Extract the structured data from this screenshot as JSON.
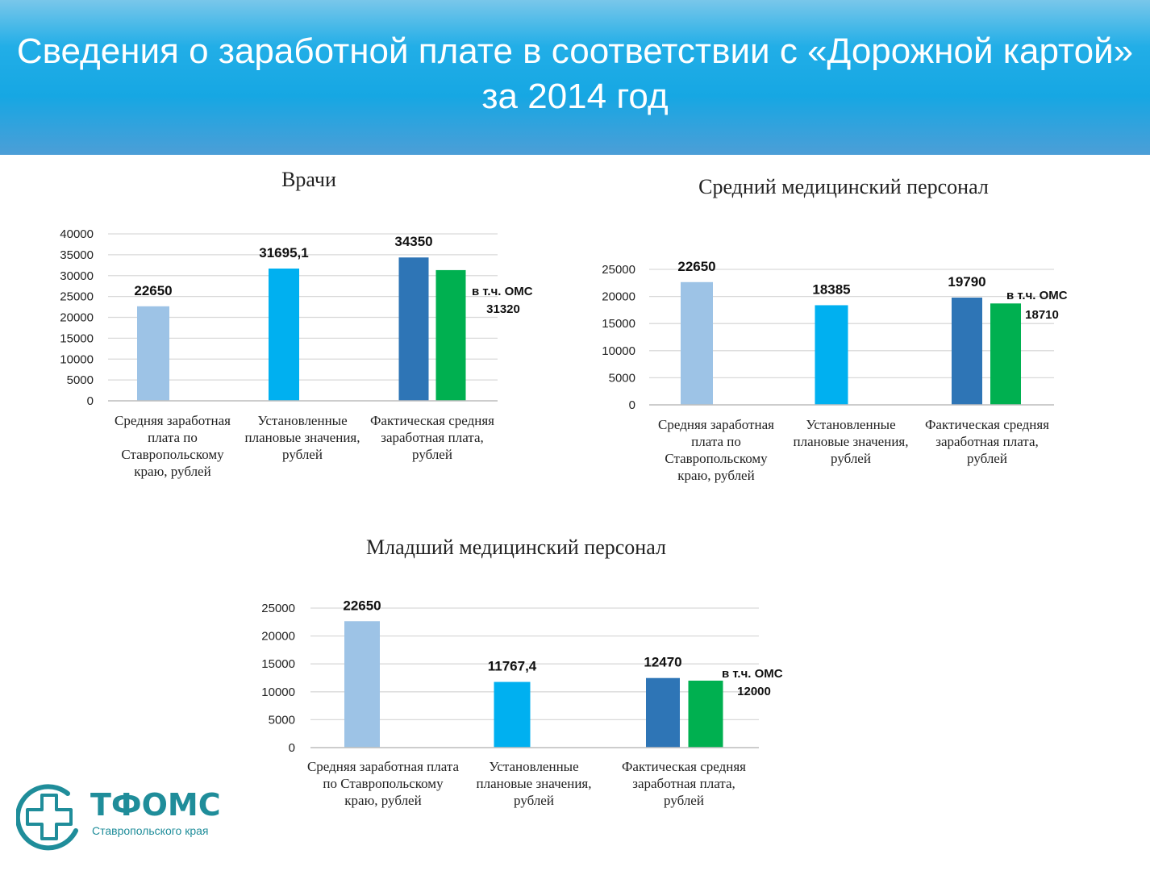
{
  "header": {
    "title": "Сведения о заработной плате в соответствии с «Дорожной картой» за 2014 год"
  },
  "colors": {
    "header_bg": "#16a7e3",
    "bar_avg_region": "#9dc3e6",
    "bar_planned": "#00b0f0",
    "bar_actual": "#2e75b6",
    "bar_oms": "#00b050",
    "logo": "#1f8d9a"
  },
  "logo": {
    "name": "ТФОМС",
    "subtitle": "Ставропольского края",
    "icon": "medical-cross-icon"
  },
  "chart_data": [
    {
      "type": "bar",
      "title": "Врачи",
      "categories": [
        "Средняя заработная плата по Ставропольскому краю, рублей",
        "Установленные плановые значения, рублей",
        "Фактическая средняя заработная плата, рублей"
      ],
      "values": [
        22650,
        31695.1,
        34350
      ],
      "value_labels": [
        "22650",
        "31695,1",
        "34350"
      ],
      "oms": {
        "value": 31320,
        "label_line1": "в т.ч. ОМС",
        "label_line2": "31320"
      },
      "ylim": [
        0,
        40000
      ],
      "yticks": [
        "0",
        "5000",
        "10000",
        "15000",
        "20000",
        "25000",
        "30000",
        "35000",
        "40000"
      ],
      "grid": true
    },
    {
      "type": "bar",
      "title": "Средний медицинский персонал",
      "categories": [
        "Средняя заработная плата по Ставропольскому краю, рублей",
        "Установленные плановые значения, рублей",
        "Фактическая средняя заработная плата, рублей"
      ],
      "values": [
        22650,
        18385,
        19790
      ],
      "value_labels": [
        "22650",
        "18385",
        "19790"
      ],
      "oms": {
        "value": 18710,
        "label_line1": "в т.ч. ОМС",
        "label_line2": "18710"
      },
      "ylim": [
        0,
        25000
      ],
      "yticks": [
        "0",
        "5000",
        "10000",
        "15000",
        "20000",
        "25000"
      ],
      "grid": true
    },
    {
      "type": "bar",
      "title": "Младший медицинский персонал",
      "categories": [
        "Средняя заработная плата по Ставропольскому краю, рублей",
        "Установленные плановые значения, рублей",
        "Фактическая средняя заработная плата, рублей"
      ],
      "values": [
        22650,
        11767.4,
        12470
      ],
      "value_labels": [
        "22650",
        "11767,4",
        "12470"
      ],
      "oms": {
        "value": 12000,
        "label_line1": "в т.ч. ОМС",
        "label_line2": "12000"
      },
      "ylim": [
        0,
        25000
      ],
      "yticks": [
        "0",
        "5000",
        "10000",
        "15000",
        "20000",
        "25000"
      ],
      "grid": true
    }
  ]
}
